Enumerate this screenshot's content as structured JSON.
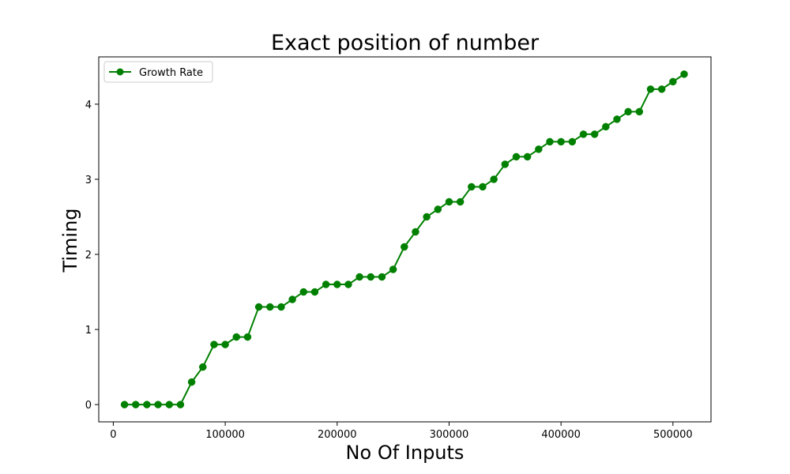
{
  "chart_data": {
    "type": "line",
    "title": "Exact position of number",
    "xlabel": "No Of Inputs",
    "ylabel": "Timing",
    "xlim": [
      -13000,
      534000
    ],
    "ylim": [
      -0.23,
      4.63
    ],
    "xticks": [
      0,
      100000,
      200000,
      300000,
      400000,
      500000
    ],
    "xtick_labels": [
      "0",
      "100000",
      "200000",
      "300000",
      "400000",
      "500000"
    ],
    "yticks": [
      0,
      1,
      2,
      3,
      4
    ],
    "ytick_labels": [
      "0",
      "1",
      "2",
      "3",
      "4"
    ],
    "grid": false,
    "legend_position": "top-left",
    "series": [
      {
        "name": "Growth Rate",
        "color": "#008000",
        "marker": "circle",
        "x": [
          10000,
          20000,
          30000,
          40000,
          50000,
          60000,
          70000,
          80000,
          90000,
          100000,
          110000,
          120000,
          130000,
          140000,
          150000,
          160000,
          170000,
          180000,
          190000,
          200000,
          210000,
          220000,
          230000,
          240000,
          250000,
          260000,
          270000,
          280000,
          290000,
          300000,
          310000,
          320000,
          330000,
          340000,
          350000,
          360000,
          370000,
          380000,
          390000,
          400000,
          410000,
          420000,
          430000,
          440000,
          450000,
          460000,
          470000,
          480000,
          490000,
          500000,
          510000
        ],
        "y": [
          0,
          0,
          0,
          0,
          0,
          0,
          0.3,
          0.5,
          0.8,
          0.8,
          0.9,
          0.9,
          1.3,
          1.3,
          1.3,
          1.4,
          1.5,
          1.5,
          1.6,
          1.6,
          1.6,
          1.7,
          1.7,
          1.7,
          1.8,
          2.1,
          2.3,
          2.5,
          2.6,
          2.7,
          2.7,
          2.9,
          2.9,
          3.0,
          3.2,
          3.3,
          3.3,
          3.4,
          3.5,
          3.5,
          3.5,
          3.6,
          3.6,
          3.7,
          3.8,
          3.9,
          3.9,
          4.2,
          4.2,
          4.3,
          4.4
        ]
      }
    ]
  }
}
